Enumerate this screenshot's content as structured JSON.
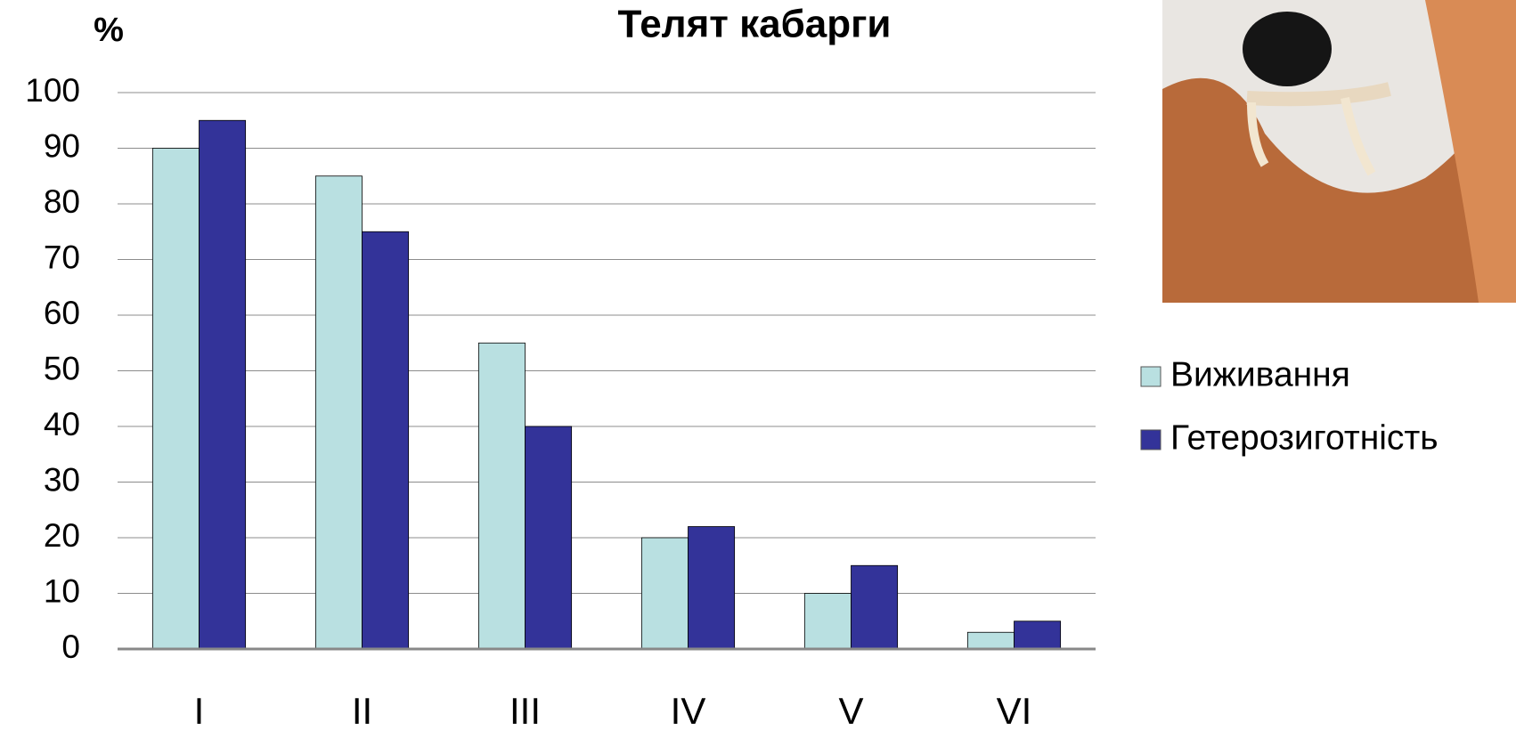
{
  "chart_data": {
    "type": "bar",
    "title": "Телят кабарги",
    "y_label": "%",
    "categories": [
      "I",
      "II",
      "III",
      "IV",
      "V",
      "VI"
    ],
    "series": [
      {
        "name": "Виживання",
        "color": "#b9e0e1",
        "values": [
          90,
          85,
          55,
          20,
          10,
          3
        ]
      },
      {
        "name": "Гетерозиготність",
        "color": "#333399",
        "values": [
          95,
          75,
          40,
          22,
          15,
          5
        ]
      }
    ],
    "ylim": [
      0,
      100
    ],
    "yticks": [
      0,
      10,
      20,
      30,
      40,
      50,
      60,
      70,
      80,
      90,
      100
    ],
    "grid": true
  }
}
